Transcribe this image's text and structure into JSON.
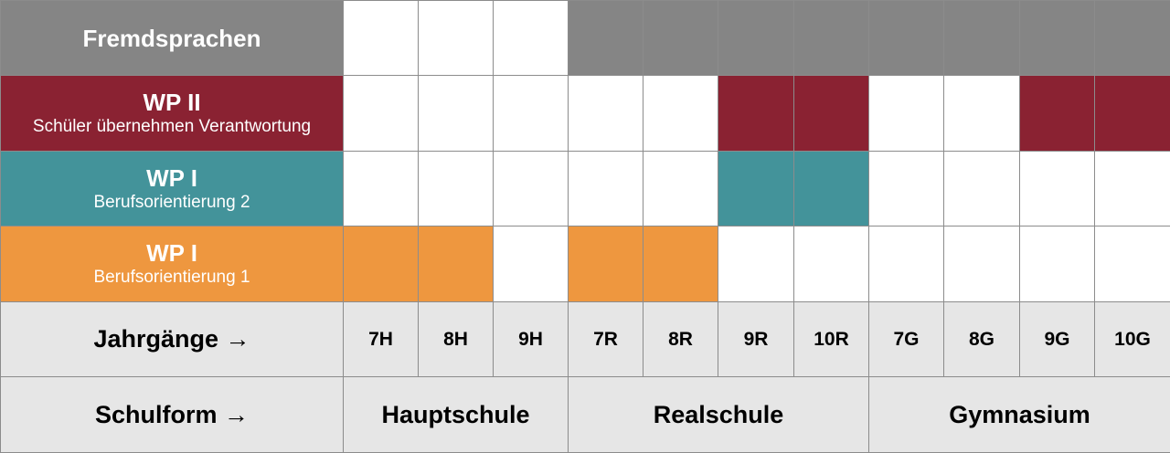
{
  "colors": {
    "gray": "#858585",
    "maroon": "#8a2232",
    "teal": "#43939a",
    "orange": "#ee973f",
    "light": "#e6e6e6",
    "white": "#ffffff"
  },
  "rows": [
    {
      "key": "fremdsprachen",
      "title": "Fremdsprachen",
      "subtitle": "",
      "color": "gray",
      "filled": [
        false,
        false,
        false,
        true,
        true,
        true,
        true,
        true,
        true,
        true,
        true
      ]
    },
    {
      "key": "wp2",
      "title": "WP II",
      "subtitle": "Schüler übernehmen Verantwortung",
      "color": "maroon",
      "filled": [
        false,
        false,
        false,
        false,
        false,
        true,
        true,
        false,
        false,
        true,
        true
      ]
    },
    {
      "key": "wp1-bo2",
      "title": "WP I",
      "subtitle": "Berufsorientierung 2",
      "color": "teal",
      "filled": [
        false,
        false,
        false,
        false,
        false,
        true,
        true,
        false,
        false,
        false,
        false
      ]
    },
    {
      "key": "wp1-bo1",
      "title": "WP I",
      "subtitle": "Berufsorientierung 1",
      "color": "orange",
      "filled": [
        true,
        true,
        false,
        true,
        true,
        false,
        false,
        false,
        false,
        false,
        false
      ]
    }
  ],
  "jahrgaenge": {
    "label": "Jahrgänge →",
    "years": [
      "7H",
      "8H",
      "9H",
      "7R",
      "8R",
      "9R",
      "10R",
      "7G",
      "8G",
      "9G",
      "10G"
    ]
  },
  "schulform": {
    "label": "Schulform →",
    "forms": [
      {
        "name": "Hauptschule",
        "span": 3
      },
      {
        "name": "Realschule",
        "span": 4
      },
      {
        "name": "Gymnasium",
        "span": 4
      }
    ]
  }
}
